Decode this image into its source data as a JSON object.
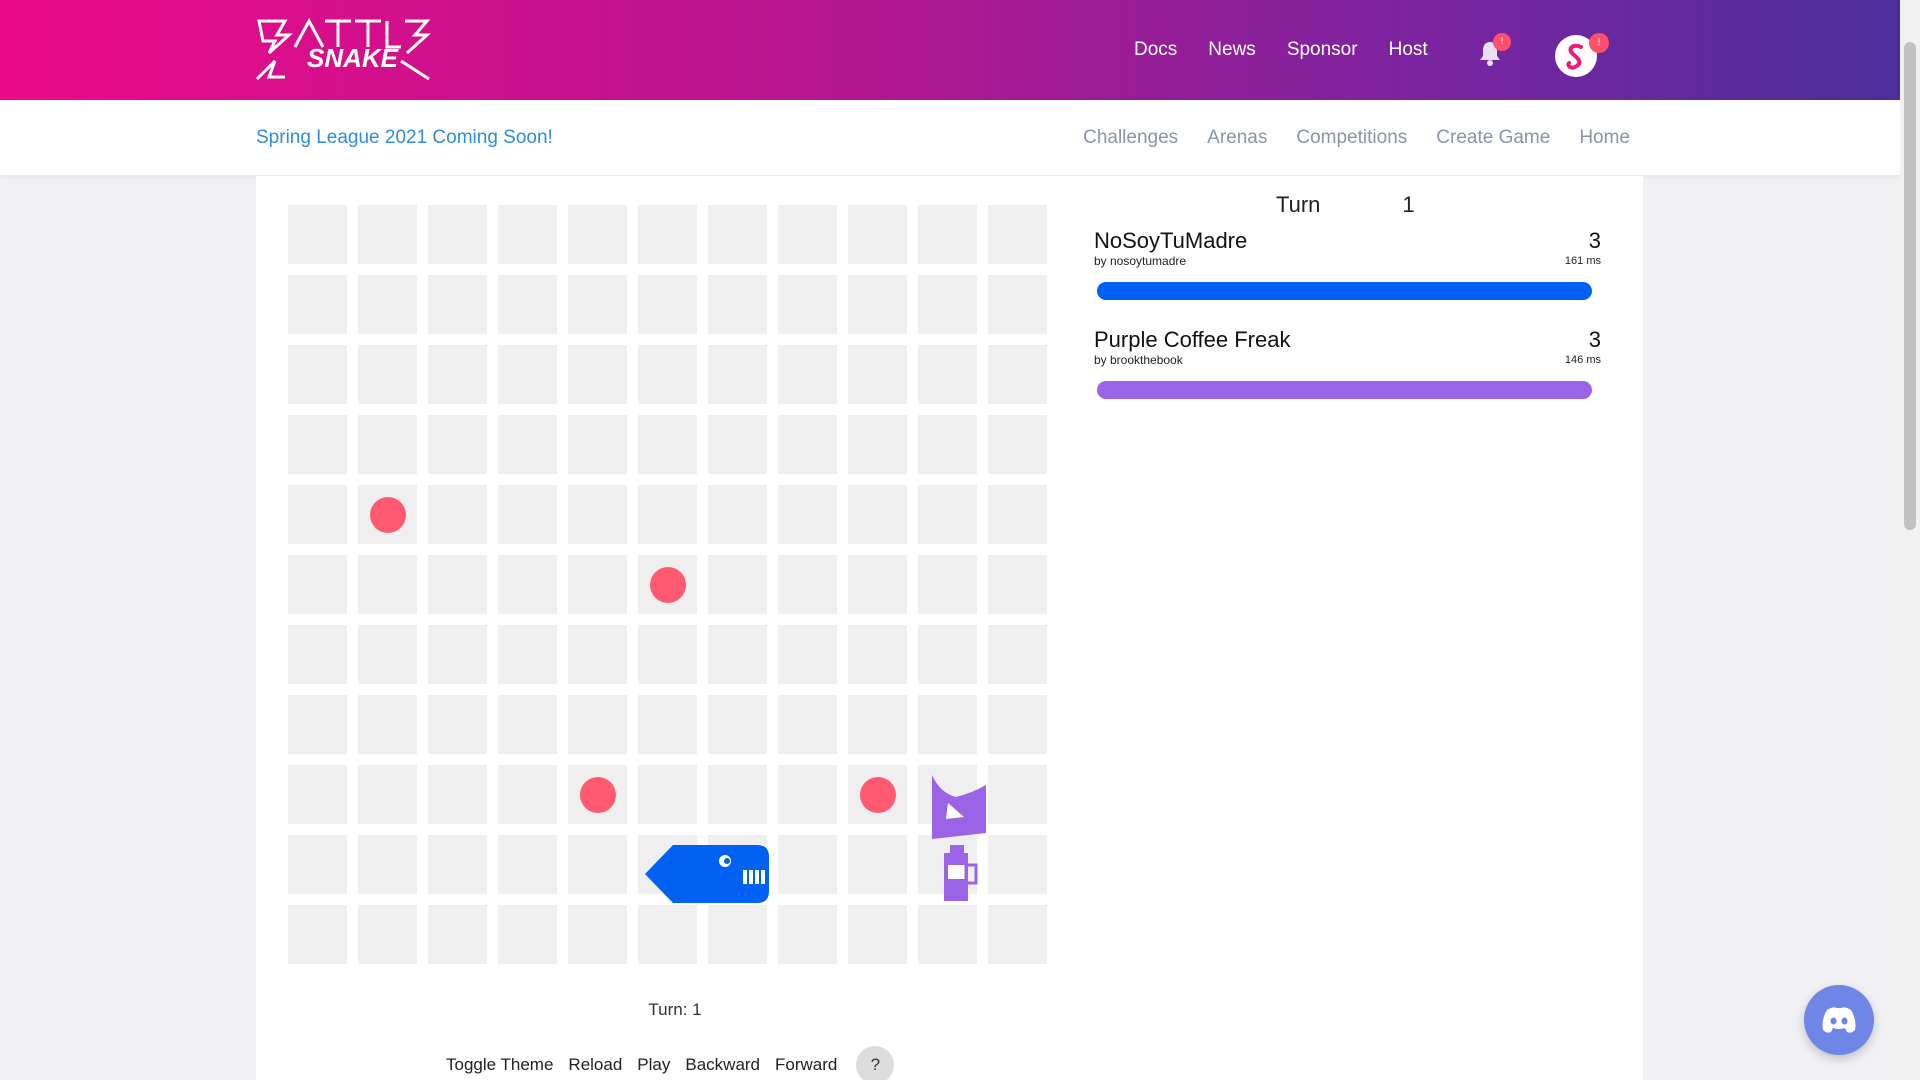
{
  "header": {
    "logo_text": "BATTLESNAKE",
    "nav": [
      "Docs",
      "News",
      "Sponsor",
      "Host"
    ],
    "notification_badge": "!",
    "avatar_badge": "!",
    "accent_gradient": [
      "#ec0a8a",
      "#4c2f9c"
    ]
  },
  "subnav": {
    "announcement": "Spring League 2021 Coming Soon!",
    "links": [
      "Challenges",
      "Arenas",
      "Competitions",
      "Create Game",
      "Home"
    ]
  },
  "game": {
    "board_size": 11,
    "food": [
      [
        1,
        4
      ],
      [
        5,
        5
      ],
      [
        4,
        8
      ],
      [
        8,
        8
      ]
    ],
    "snakes": [
      {
        "name": "NoSoyTuMadre",
        "author": "by nosoytumadre",
        "length": "3",
        "latency": "161 ms",
        "color": "#0061f2",
        "health_pct": 100
      },
      {
        "name": "Purple Coffee Freak",
        "author": "by brookthebook",
        "length": "3",
        "latency": "146 ms",
        "color": "#9b63e6",
        "health_pct": 100
      }
    ],
    "turn_head_label": "Turn",
    "turn_head_value": "1",
    "turn_footer": "Turn: 1"
  },
  "controls": [
    "Toggle Theme",
    "Reload",
    "Play",
    "Backward",
    "Forward"
  ],
  "help_label": "?",
  "colors": {
    "food": "#ff5a72",
    "cell": "#efefef",
    "announce": "#2f8ed8",
    "discord": "#6f86e6"
  }
}
